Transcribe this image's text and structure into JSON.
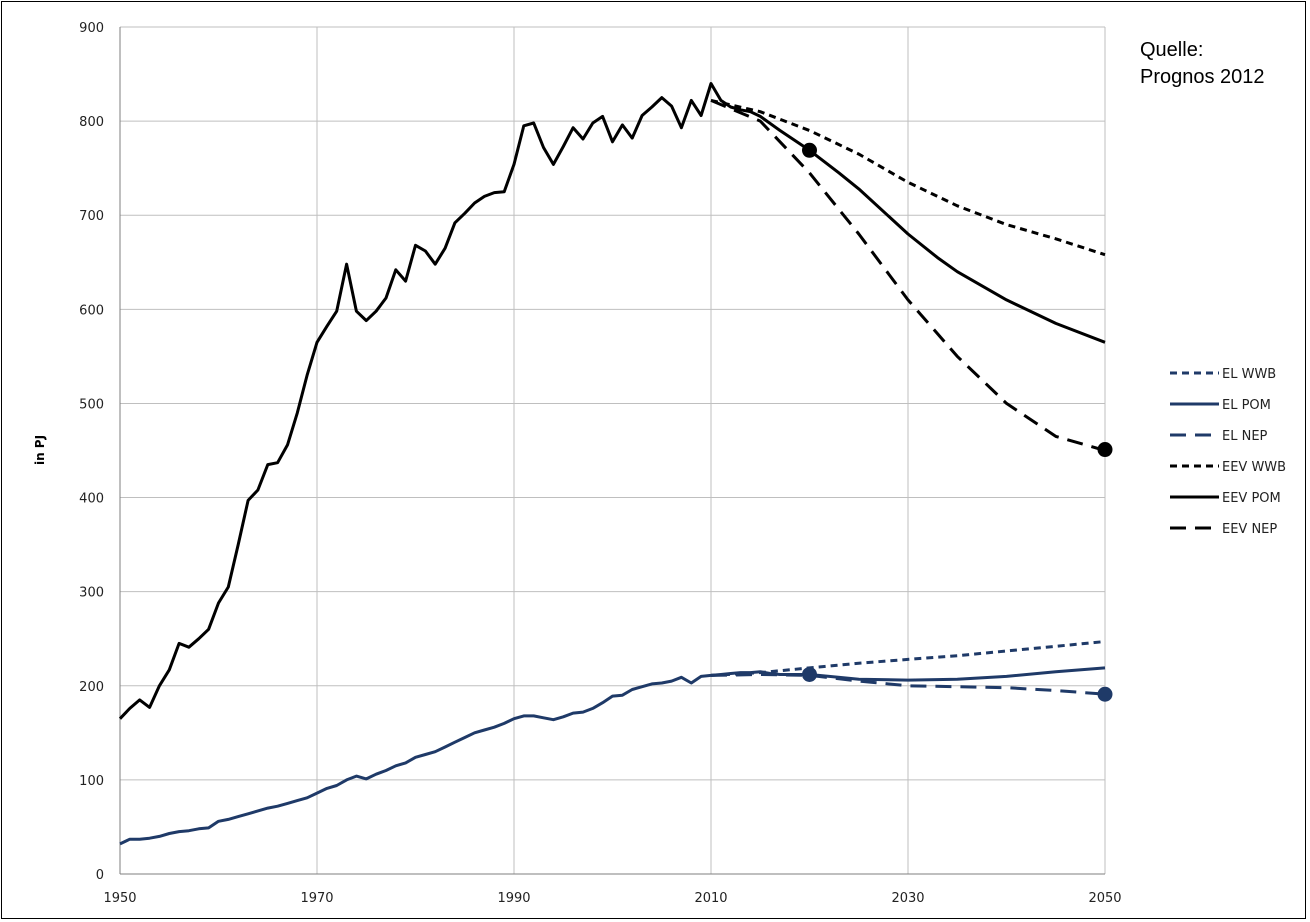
{
  "chart_data": {
    "type": "line",
    "ylabel": "in PJ",
    "xlim": [
      1950,
      2050
    ],
    "ylim": [
      0,
      900
    ],
    "x_ticks": [
      "1950",
      "1970",
      "1990",
      "2010",
      "2030",
      "2050"
    ],
    "y_ticks": [
      "0",
      "100",
      "200",
      "300",
      "400",
      "500",
      "600",
      "700",
      "800",
      "900"
    ],
    "grid": true,
    "legend_position": "right",
    "source_lines": [
      "Quelle:",
      "Prognos 2012"
    ],
    "colors": {
      "EL": "#1f3a68",
      "EEV": "#000000",
      "grid": "#bfbfbf"
    },
    "series": [
      {
        "name": "EL WWB",
        "color": "#1f3a68",
        "style": "short-dash",
        "x": [
          2010,
          2015,
          2020,
          2025,
          2030,
          2035,
          2040,
          2045,
          2050
        ],
        "y": [
          211,
          214,
          219,
          224,
          228,
          232,
          237,
          242,
          247
        ]
      },
      {
        "name": "EL POM",
        "color": "#1f3a68",
        "style": "solid",
        "x": [
          1950,
          1951,
          1952,
          1953,
          1954,
          1955,
          1956,
          1957,
          1958,
          1959,
          1960,
          1961,
          1962,
          1963,
          1964,
          1965,
          1966,
          1967,
          1968,
          1969,
          1970,
          1971,
          1972,
          1973,
          1974,
          1975,
          1976,
          1977,
          1978,
          1979,
          1980,
          1981,
          1982,
          1983,
          1984,
          1985,
          1986,
          1987,
          1988,
          1989,
          1990,
          1991,
          1992,
          1993,
          1994,
          1995,
          1996,
          1997,
          1998,
          1999,
          2000,
          2001,
          2002,
          2003,
          2004,
          2005,
          2006,
          2007,
          2008,
          2009,
          2010,
          2011,
          2012,
          2013,
          2014,
          2015,
          2016,
          2017,
          2018,
          2019,
          2020,
          2022,
          2025,
          2030,
          2035,
          2040,
          2045,
          2050
        ],
        "y": [
          32,
          37,
          37,
          38,
          40,
          43,
          45,
          46,
          48,
          49,
          56,
          58,
          61,
          64,
          67,
          70,
          72,
          75,
          78,
          81,
          86,
          91,
          94,
          100,
          104,
          101,
          106,
          110,
          115,
          118,
          124,
          127,
          130,
          135,
          140,
          145,
          150,
          153,
          156,
          160,
          165,
          168,
          168,
          166,
          164,
          167,
          171,
          172,
          176,
          182,
          189,
          190,
          196,
          199,
          202,
          203,
          205,
          209,
          203,
          210,
          211,
          212,
          213,
          214,
          214,
          215,
          213,
          212,
          212,
          212,
          212,
          210,
          207,
          206,
          207,
          210,
          215,
          219
        ]
      },
      {
        "name": "EL NEP",
        "color": "#1f3a68",
        "style": "long-dash",
        "x": [
          2010,
          2015,
          2020,
          2025,
          2030,
          2035,
          2040,
          2045,
          2050
        ],
        "y": [
          211,
          212,
          211,
          205,
          200,
          199,
          198,
          195,
          191
        ]
      },
      {
        "name": "EEV WWB",
        "color": "#000000",
        "style": "short-dash",
        "x": [
          2010,
          2015,
          2020,
          2025,
          2030,
          2035,
          2040,
          2045,
          2050
        ],
        "y": [
          822,
          810,
          790,
          765,
          735,
          710,
          690,
          675,
          658
        ]
      },
      {
        "name": "EEV POM",
        "color": "#000000",
        "style": "solid",
        "x": [
          1950,
          1951,
          1952,
          1953,
          1954,
          1955,
          1956,
          1957,
          1958,
          1959,
          1960,
          1961,
          1962,
          1963,
          1964,
          1965,
          1966,
          1967,
          1968,
          1969,
          1970,
          1971,
          1972,
          1973,
          1974,
          1975,
          1976,
          1977,
          1978,
          1979,
          1980,
          1981,
          1982,
          1983,
          1984,
          1985,
          1986,
          1987,
          1988,
          1989,
          1990,
          1991,
          1992,
          1993,
          1994,
          1995,
          1996,
          1997,
          1998,
          1999,
          2000,
          2001,
          2002,
          2003,
          2004,
          2005,
          2006,
          2007,
          2008,
          2009,
          2010,
          2011,
          2012,
          2013,
          2014,
          2015,
          2017,
          2020,
          2023,
          2025,
          2030,
          2033,
          2035,
          2040,
          2045,
          2050
        ],
        "y": [
          165,
          176,
          185,
          177,
          200,
          217,
          245,
          241,
          250,
          260,
          288,
          305,
          350,
          397,
          408,
          435,
          437,
          456,
          490,
          530,
          565,
          582,
          598,
          648,
          598,
          588,
          598,
          612,
          642,
          630,
          668,
          662,
          648,
          665,
          692,
          702,
          713,
          720,
          724,
          725,
          754,
          795,
          798,
          772,
          754,
          773,
          793,
          781,
          798,
          805,
          778,
          796,
          782,
          806,
          815,
          825,
          816,
          793,
          822,
          806,
          840,
          822,
          815,
          812,
          810,
          805,
          790,
          769,
          745,
          728,
          680,
          655,
          640,
          610,
          585,
          565
        ]
      },
      {
        "name": "EEV NEP",
        "color": "#000000",
        "style": "long-dash",
        "x": [
          2010,
          2015,
          2020,
          2025,
          2030,
          2035,
          2040,
          2045,
          2050
        ],
        "y": [
          822,
          800,
          745,
          680,
          610,
          550,
          500,
          465,
          450
        ]
      }
    ],
    "markers": [
      {
        "series": "EEV POM",
        "x": 2020,
        "y": 769
      },
      {
        "series": "EEV NEP",
        "x": 2050,
        "y": 451
      },
      {
        "series": "EL POM",
        "x": 2020,
        "y": 212
      },
      {
        "series": "EL NEP",
        "x": 2050,
        "y": 191
      }
    ]
  }
}
